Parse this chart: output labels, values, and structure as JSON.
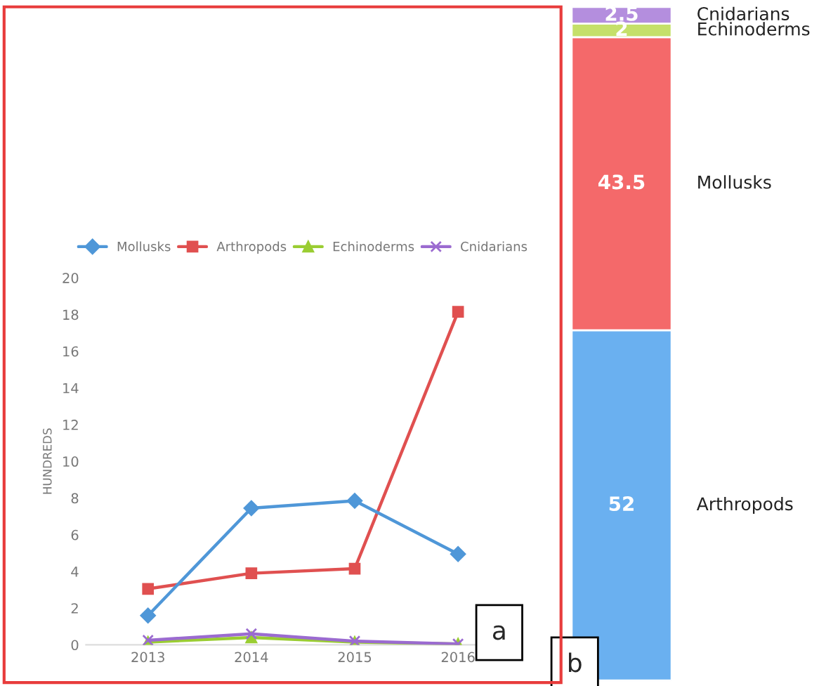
{
  "chart_data": [
    {
      "type": "line",
      "ylabel": "HUNDREDS",
      "categories": [
        "2013",
        "2014",
        "2015",
        "2016"
      ],
      "ylim": [
        0,
        20
      ],
      "yticks": [
        0,
        2,
        4,
        6,
        8,
        10,
        12,
        14,
        16,
        18,
        20
      ],
      "legend": "top",
      "annotations": [
        "a"
      ],
      "series": [
        {
          "name": "Mollusks",
          "color": "#4f97d8",
          "marker": "diamond",
          "values": [
            1.6,
            7.45,
            7.85,
            4.95
          ]
        },
        {
          "name": "Arthropods",
          "color": "#e05050",
          "marker": "square",
          "values": [
            3.05,
            3.9,
            4.15,
            18.15
          ]
        },
        {
          "name": "Echinoderms",
          "color": "#9acd32",
          "marker": "triangle",
          "values": [
            0.15,
            0.4,
            0.15,
            0.05
          ]
        },
        {
          "name": "Cnidarians",
          "color": "#9b6bd0",
          "marker": "cross",
          "values": [
            0.25,
            0.6,
            0.2,
            0.05
          ]
        }
      ]
    },
    {
      "type": "bar",
      "stacked": true,
      "data_labels": true,
      "categories": [
        null
      ],
      "annotations": [
        "b"
      ],
      "series": [
        {
          "name": "Arthropods",
          "color": "#6ab0f0",
          "values": [
            52
          ]
        },
        {
          "name": "Mollusks",
          "color": "#f4696a",
          "values": [
            43.5
          ]
        },
        {
          "name": "Echinoderms",
          "color": "#c5e06a",
          "values": [
            2
          ]
        },
        {
          "name": "Cnidarians",
          "color": "#b48ede",
          "values": [
            2.5
          ]
        }
      ]
    }
  ]
}
